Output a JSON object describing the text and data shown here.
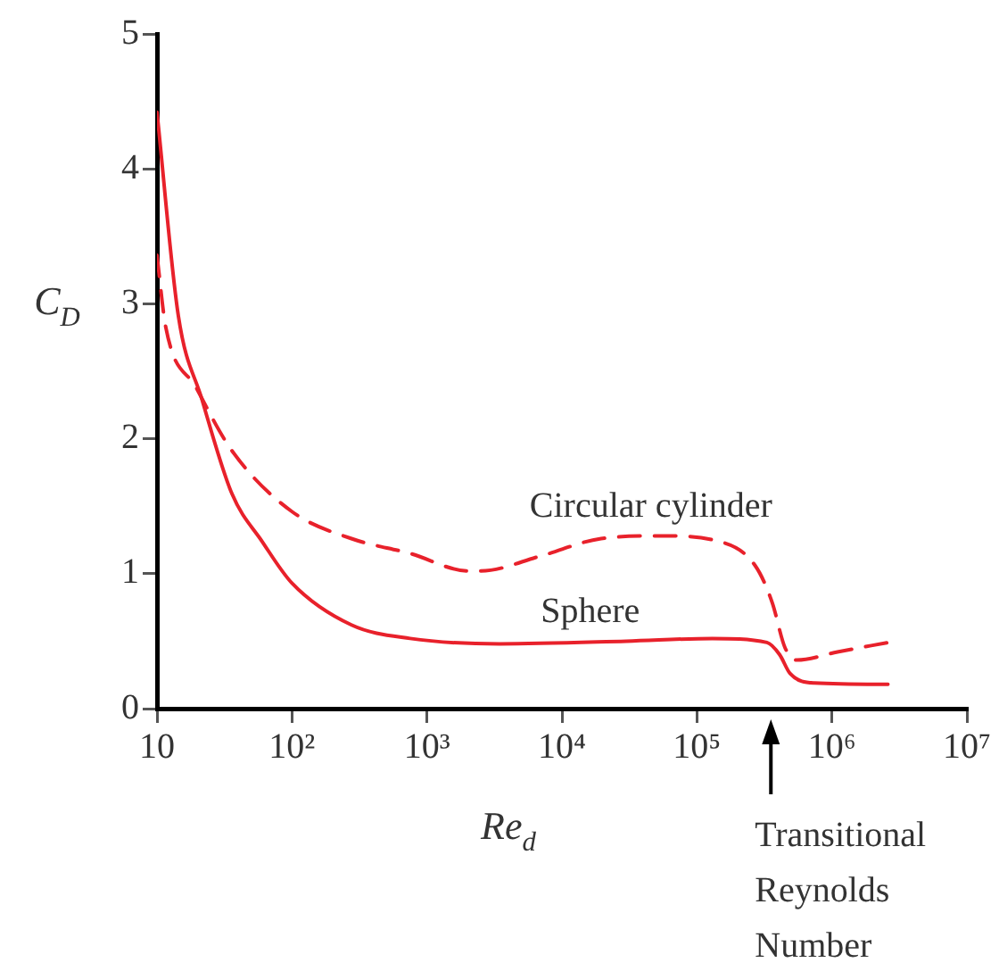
{
  "chart_data": {
    "type": "line",
    "xlabel": "Re$_{d}$",
    "ylabel": "C$_{D}$",
    "log": "x",
    "grid": false,
    "legend": false,
    "marker": "none",
    "xlim": [
      10,
      10000000
    ],
    "xticks": [
      10,
      {
        "value": 100,
        "label": "10²"
      },
      {
        "value": 1000,
        "label": "10³"
      },
      {
        "value": 10000,
        "label": "10⁴"
      },
      {
        "value": 100000,
        "label": "10⁵"
      },
      {
        "value": 1000000,
        "label": "10⁶"
      },
      {
        "value": 10000000,
        "label": "10⁷"
      }
    ],
    "ylim": [
      0,
      5
    ],
    "yticks": [
      0,
      1,
      2,
      3,
      4,
      5
    ],
    "series": [
      {
        "name": "Circular cylinder",
        "color": "#e8212b",
        "line_style": "dashed",
        "x": [
          10,
          11.6,
          19.5,
          36,
          100,
          276,
          750,
          2040,
          2500,
          6900,
          19500,
          54000,
          145000,
          270000,
          360000,
          450000,
          550000,
          1100000,
          2600000
        ],
        "values": [
          3.36,
          2.83,
          2.38,
          1.91,
          1.46,
          1.26,
          1.15,
          1.02,
          1.02,
          1.13,
          1.26,
          1.28,
          1.24,
          1.06,
          0.79,
          0.45,
          0.36,
          0.42,
          0.49
        ]
      },
      {
        "name": "Sphere",
        "color": "#e8212b",
        "line_style": "solid",
        "x": [
          10,
          14.4,
          21.4,
          36,
          60,
          100,
          276,
          750,
          3450,
          30000,
          130000,
          330000,
          410000,
          490000,
          740000,
          2600000
        ],
        "values": [
          4.42,
          2.91,
          2.3,
          1.59,
          1.24,
          0.93,
          0.62,
          0.52,
          0.48,
          0.5,
          0.52,
          0.49,
          0.4,
          0.26,
          0.19,
          0.18
        ]
      }
    ],
    "annotations": [
      "Transitional Reynolds Number"
    ]
  }
}
